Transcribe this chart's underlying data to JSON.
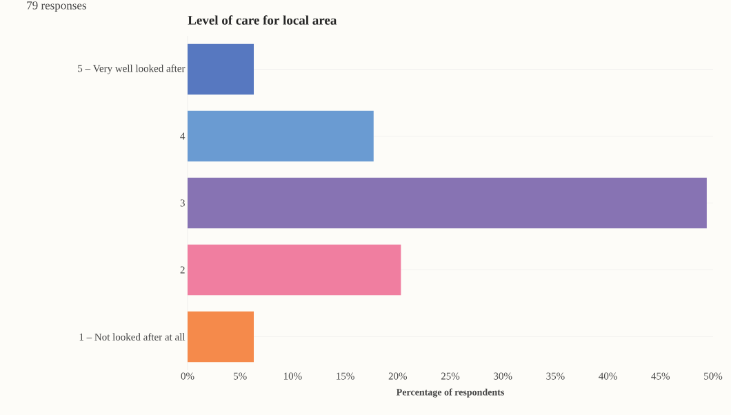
{
  "chart_data": {
    "type": "bar",
    "orientation": "horizontal",
    "title": "Level of care for local area",
    "xlabel": "Percentage of respondents",
    "annotations": [
      "79 responses"
    ],
    "categories": [
      "5 – Very well looked after",
      "4",
      "3",
      "2",
      "1 – Not looked after at all"
    ],
    "values": [
      6.3,
      17.7,
      49.4,
      20.3,
      6.3
    ],
    "colors": [
      "#5778c0",
      "#6a9bd2",
      "#8773b3",
      "#f07ea0",
      "#f58a4b"
    ],
    "xlim": [
      0,
      50
    ],
    "xticks": [
      {
        "value": 0,
        "label": "0%"
      },
      {
        "value": 5,
        "label": "5%"
      },
      {
        "value": 10,
        "label": "10%"
      },
      {
        "value": 15,
        "label": "15%"
      },
      {
        "value": 20,
        "label": "20%"
      },
      {
        "value": 25,
        "label": "25%"
      },
      {
        "value": 30,
        "label": "30%"
      },
      {
        "value": 35,
        "label": "35%"
      },
      {
        "value": 40,
        "label": "40%"
      },
      {
        "value": 45,
        "label": "45%"
      },
      {
        "value": 50,
        "label": "50%"
      }
    ],
    "grid": "y"
  }
}
